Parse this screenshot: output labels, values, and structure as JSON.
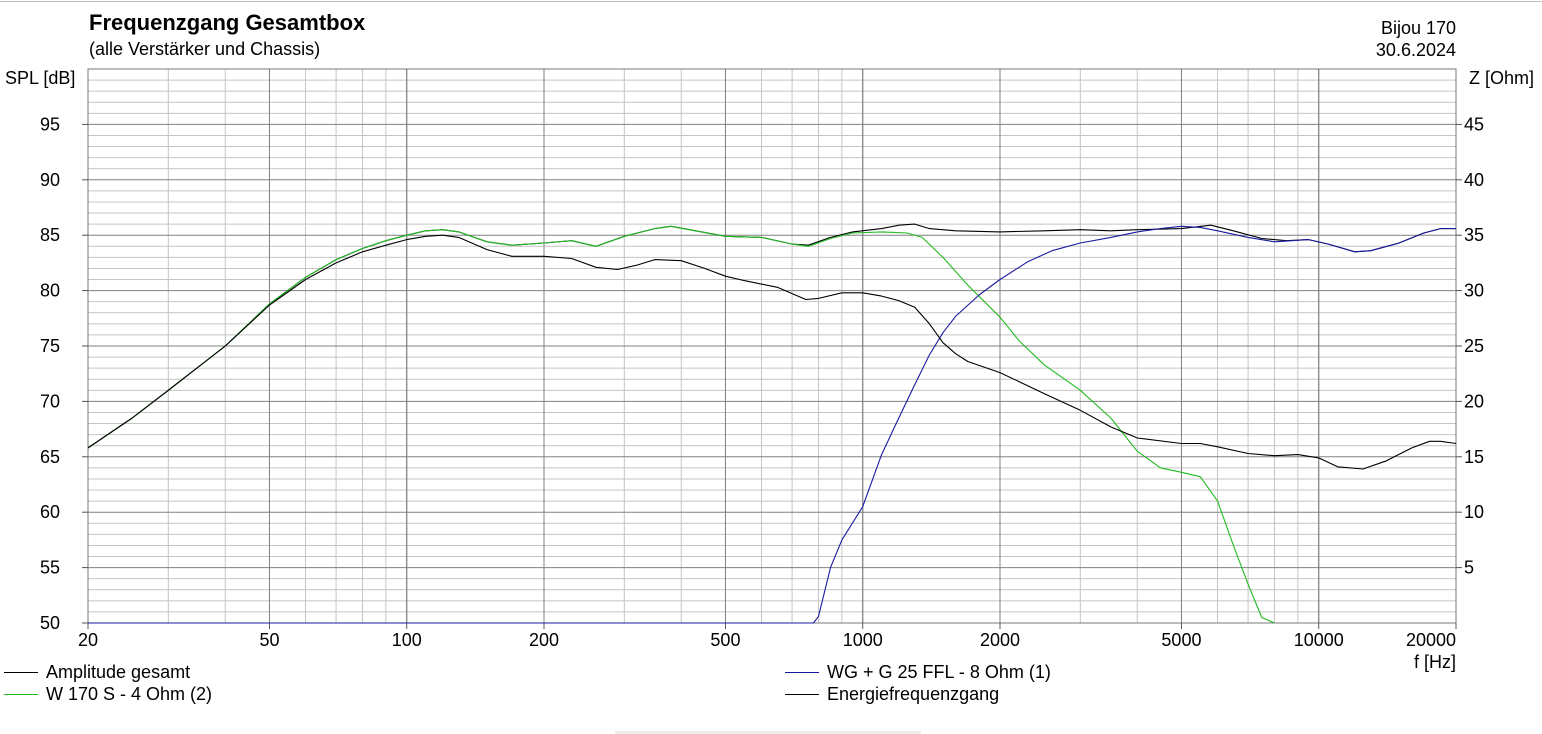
{
  "header": {
    "title": "Frequenzgang Gesamtbox",
    "subtitle": "(alle Verstärker und Chassis)",
    "product": "Bijou 170",
    "date": "30.6.2024"
  },
  "chart_data": {
    "type": "line",
    "xscale": "log",
    "xlim": [
      20,
      20000
    ],
    "ylim": [
      50,
      100
    ],
    "y2lim": [
      0,
      50
    ],
    "xlabel": "f [Hz]",
    "ylabel": "SPL [dB]",
    "y2label": "Z [Ohm]",
    "x_ticks": [
      "20",
      "50",
      "100",
      "200",
      "500",
      "1000",
      "2000",
      "5000",
      "10000",
      "20000"
    ],
    "y_ticks": [
      "50",
      "55",
      "60",
      "65",
      "70",
      "75",
      "80",
      "85",
      "90",
      "95"
    ],
    "y2_ticks": [
      "5",
      "10",
      "15",
      "20",
      "25",
      "30",
      "35",
      "40",
      "45"
    ],
    "grid": true,
    "legend": "bottom",
    "series": [
      {
        "name": "Amplitude gesamt",
        "color": "#000000",
        "points": [
          [
            20,
            65.8
          ],
          [
            25,
            68.5
          ],
          [
            30,
            71
          ],
          [
            40,
            75
          ],
          [
            50,
            78.8
          ],
          [
            60,
            81.2
          ],
          [
            70,
            82.8
          ],
          [
            80,
            83.8
          ],
          [
            90,
            84.5
          ],
          [
            100,
            85
          ],
          [
            110,
            85.4
          ],
          [
            120,
            85.5
          ],
          [
            130,
            85.3
          ],
          [
            150,
            84.4
          ],
          [
            170,
            84.1
          ],
          [
            200,
            84.3
          ],
          [
            230,
            84.5
          ],
          [
            260,
            84
          ],
          [
            300,
            84.9
          ],
          [
            350,
            85.6
          ],
          [
            380,
            85.8
          ],
          [
            430,
            85.4
          ],
          [
            500,
            84.9
          ],
          [
            600,
            84.8
          ],
          [
            700,
            84.2
          ],
          [
            760,
            84.1
          ],
          [
            850,
            84.8
          ],
          [
            950,
            85.3
          ],
          [
            1100,
            85.6
          ],
          [
            1200,
            85.9
          ],
          [
            1300,
            86
          ],
          [
            1400,
            85.6
          ],
          [
            1600,
            85.4
          ],
          [
            2000,
            85.3
          ],
          [
            2500,
            85.4
          ],
          [
            3000,
            85.5
          ],
          [
            3500,
            85.4
          ],
          [
            4000,
            85.5
          ],
          [
            5000,
            85.6
          ],
          [
            5800,
            85.9
          ],
          [
            6500,
            85.4
          ],
          [
            7500,
            84.7
          ],
          [
            8500,
            84.5
          ],
          [
            9500,
            84.6
          ],
          [
            10500,
            84.2
          ],
          [
            12000,
            83.5
          ],
          [
            13000,
            83.6
          ],
          [
            15000,
            84.3
          ],
          [
            17000,
            85.2
          ],
          [
            18500,
            85.6
          ],
          [
            20000,
            85.6
          ]
        ]
      },
      {
        "name": "W 170 S - 4 Ohm (2)",
        "color": "#22bb22",
        "points": [
          [
            20,
            65.8
          ],
          [
            25,
            68.5
          ],
          [
            30,
            71
          ],
          [
            40,
            75
          ],
          [
            50,
            78.8
          ],
          [
            60,
            81.2
          ],
          [
            70,
            82.8
          ],
          [
            80,
            83.8
          ],
          [
            90,
            84.5
          ],
          [
            100,
            85
          ],
          [
            110,
            85.4
          ],
          [
            120,
            85.5
          ],
          [
            130,
            85.3
          ],
          [
            150,
            84.4
          ],
          [
            170,
            84.1
          ],
          [
            200,
            84.3
          ],
          [
            230,
            84.5
          ],
          [
            260,
            84
          ],
          [
            300,
            84.9
          ],
          [
            350,
            85.6
          ],
          [
            380,
            85.8
          ],
          [
            430,
            85.4
          ],
          [
            500,
            84.9
          ],
          [
            600,
            84.8
          ],
          [
            700,
            84.2
          ],
          [
            760,
            84
          ],
          [
            850,
            84.7
          ],
          [
            950,
            85.2
          ],
          [
            1100,
            85.3
          ],
          [
            1250,
            85.2
          ],
          [
            1350,
            84.8
          ],
          [
            1500,
            83
          ],
          [
            1700,
            80.5
          ],
          [
            2000,
            77.6
          ],
          [
            2200,
            75.5
          ],
          [
            2500,
            73.3
          ],
          [
            3000,
            71
          ],
          [
            3500,
            68.5
          ],
          [
            4000,
            65.5
          ],
          [
            4500,
            64
          ],
          [
            5000,
            63.6
          ],
          [
            5500,
            63.2
          ],
          [
            6000,
            61
          ],
          [
            6500,
            57
          ],
          [
            7000,
            53.5
          ],
          [
            7500,
            50.5
          ],
          [
            8000,
            49.5
          ]
        ]
      },
      {
        "name": "WG + G 25 FFL - 8 Ohm (1)",
        "color": "#1a1aa0",
        "points": [
          [
            20,
            50
          ],
          [
            780,
            50
          ],
          [
            800,
            50.6
          ],
          [
            850,
            55
          ],
          [
            900,
            57.5
          ],
          [
            1000,
            60.5
          ],
          [
            1100,
            65.2
          ],
          [
            1200,
            68.5
          ],
          [
            1300,
            71.5
          ],
          [
            1400,
            74.2
          ],
          [
            1500,
            76.2
          ],
          [
            1600,
            77.7
          ],
          [
            1800,
            79.6
          ],
          [
            2000,
            81
          ],
          [
            2300,
            82.6
          ],
          [
            2600,
            83.6
          ],
          [
            3000,
            84.3
          ],
          [
            3500,
            84.8
          ],
          [
            4000,
            85.3
          ],
          [
            4500,
            85.6
          ],
          [
            5000,
            85.8
          ],
          [
            5500,
            85.7
          ],
          [
            6000,
            85.4
          ],
          [
            7000,
            84.8
          ],
          [
            8000,
            84.4
          ],
          [
            9500,
            84.6
          ],
          [
            10500,
            84.2
          ],
          [
            12000,
            83.5
          ],
          [
            13000,
            83.6
          ],
          [
            15000,
            84.3
          ],
          [
            17000,
            85.2
          ],
          [
            18500,
            85.6
          ],
          [
            20000,
            85.6
          ]
        ]
      },
      {
        "name": "Energiefrequenzgang",
        "color": "#000000",
        "points": [
          [
            20,
            65.8
          ],
          [
            25,
            68.5
          ],
          [
            30,
            71
          ],
          [
            40,
            75
          ],
          [
            50,
            78.7
          ],
          [
            60,
            81
          ],
          [
            70,
            82.5
          ],
          [
            80,
            83.5
          ],
          [
            90,
            84.1
          ],
          [
            100,
            84.6
          ],
          [
            110,
            84.9
          ],
          [
            120,
            85
          ],
          [
            130,
            84.8
          ],
          [
            150,
            83.7
          ],
          [
            170,
            83.1
          ],
          [
            200,
            83.1
          ],
          [
            230,
            82.9
          ],
          [
            260,
            82.1
          ],
          [
            290,
            81.9
          ],
          [
            320,
            82.3
          ],
          [
            350,
            82.8
          ],
          [
            400,
            82.7
          ],
          [
            450,
            82
          ],
          [
            500,
            81.3
          ],
          [
            550,
            80.9
          ],
          [
            650,
            80.3
          ],
          [
            750,
            79.2
          ],
          [
            800,
            79.3
          ],
          [
            900,
            79.8
          ],
          [
            1000,
            79.8
          ],
          [
            1100,
            79.5
          ],
          [
            1200,
            79.1
          ],
          [
            1300,
            78.5
          ],
          [
            1400,
            77
          ],
          [
            1500,
            75.3
          ],
          [
            1600,
            74.3
          ],
          [
            1700,
            73.6
          ],
          [
            2000,
            72.6
          ],
          [
            2500,
            70.7
          ],
          [
            3000,
            69.2
          ],
          [
            3500,
            67.7
          ],
          [
            4000,
            66.7
          ],
          [
            5000,
            66.2
          ],
          [
            5500,
            66.2
          ],
          [
            6000,
            65.9
          ],
          [
            7000,
            65.3
          ],
          [
            8000,
            65.1
          ],
          [
            9000,
            65.2
          ],
          [
            10000,
            64.9
          ],
          [
            11000,
            64.1
          ],
          [
            12500,
            63.9
          ],
          [
            14000,
            64.6
          ],
          [
            16000,
            65.8
          ],
          [
            17500,
            66.4
          ],
          [
            18500,
            66.4
          ],
          [
            20000,
            66.2
          ]
        ]
      }
    ]
  }
}
